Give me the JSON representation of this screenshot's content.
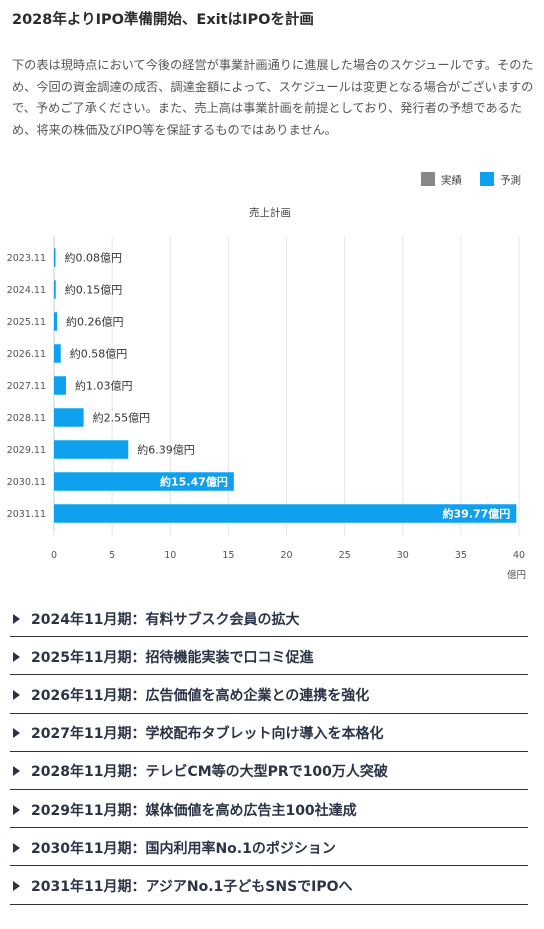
{
  "header": {
    "title": "2028年よりIPO準備開始、ExitはIPOを計画",
    "description": "下の表は現時点において今後の経営が事業計画通りに進展した場合のスケジュールです。そのため、今回の資金調達の成否、調達金額によって、スケジュールは変更となる場合がございますので、予めご了承ください。また、売上高は事業計画を前提としており、発行者の予想であるため、将来の株価及びIPO等を保証するものではありません。"
  },
  "colors": {
    "actual": "#888888",
    "forecast": "#0fa0f0",
    "grid": "#e6e6e6",
    "axis_text": "#555555"
  },
  "chart_data": {
    "type": "bar",
    "orientation": "horizontal",
    "title": "売上計画",
    "legend": [
      {
        "name": "実績",
        "color": "#888888"
      },
      {
        "name": "予測",
        "color": "#0fa0f0"
      }
    ],
    "legend_position": "top-right",
    "categories": [
      "2023.11",
      "2024.11",
      "2025.11",
      "2026.11",
      "2027.11",
      "2028.11",
      "2029.11",
      "2030.11",
      "2031.11"
    ],
    "series": [
      {
        "name": "予測",
        "values": [
          0.08,
          0.15,
          0.26,
          0.58,
          1.03,
          2.55,
          6.39,
          15.47,
          39.77
        ],
        "labels": [
          "約0.08億円",
          "約0.15億円",
          "約0.26億円",
          "約0.58億円",
          "約1.03億円",
          "約2.55億円",
          "約6.39億円",
          "約15.47億円",
          "約39.77億円"
        ]
      }
    ],
    "xticks": [
      0,
      5,
      10,
      15,
      20,
      25,
      30,
      35,
      40
    ],
    "xlim": [
      0,
      40
    ],
    "xunit": "億円",
    "grid": true
  },
  "milestones": [
    "2024年11月期：有料サブスク会員の拡大",
    "2025年11月期：招待機能実装で口コミ促進",
    "2026年11月期：広告価値を高め企業との連携を強化",
    "2027年11月期：学校配布タブレット向け導入を本格化",
    "2028年11月期：テレビCM等の大型PRで100万人突破",
    "2029年11月期：媒体価値を高め広告主100社達成",
    "2030年11月期：国内利用率No.1のポジション",
    "2031年11月期：アジアNo.1子どもSNSでIPOへ"
  ]
}
